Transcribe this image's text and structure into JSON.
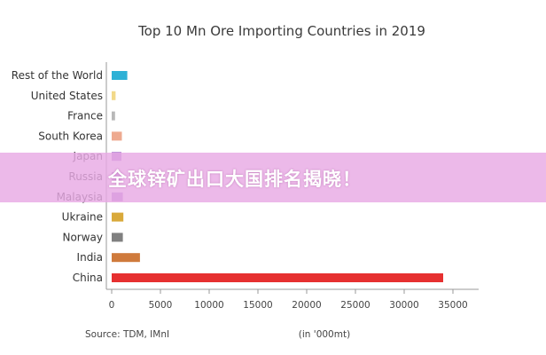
{
  "chart_data": {
    "type": "bar",
    "orientation": "horizontal",
    "title": "Top 10 Mn Ore Importing Countries in 2019",
    "categories": [
      "Rest of the World",
      "United States",
      "France",
      "South Korea",
      "Japan",
      "Russia",
      "Malaysia",
      "Ukraine",
      "Norway",
      "India",
      "China"
    ],
    "values": [
      1600,
      400,
      350,
      1050,
      1000,
      1050,
      1150,
      1200,
      1150,
      2900,
      34000
    ],
    "colors": [
      "#2eb1d6",
      "#f2d98a",
      "#b8b8b8",
      "#eeaa90",
      "#b07fd0",
      "#b07fd0",
      "#b07fd0",
      "#d9a93a",
      "#808080",
      "#cf7a3c",
      "#e63030"
    ],
    "xlim": [
      0,
      37000
    ],
    "xticks": [
      "0",
      "5000",
      "10000",
      "15000",
      "20000",
      "25000",
      "30000",
      "35000"
    ],
    "grid": false,
    "legend": "none"
  },
  "footer": {
    "source": "Source: TDM, IMnI",
    "unit": "(in '000mt)"
  },
  "banner": {
    "text": "全球锌矿出口大国排名揭晓！",
    "color": "#e8aae4"
  }
}
